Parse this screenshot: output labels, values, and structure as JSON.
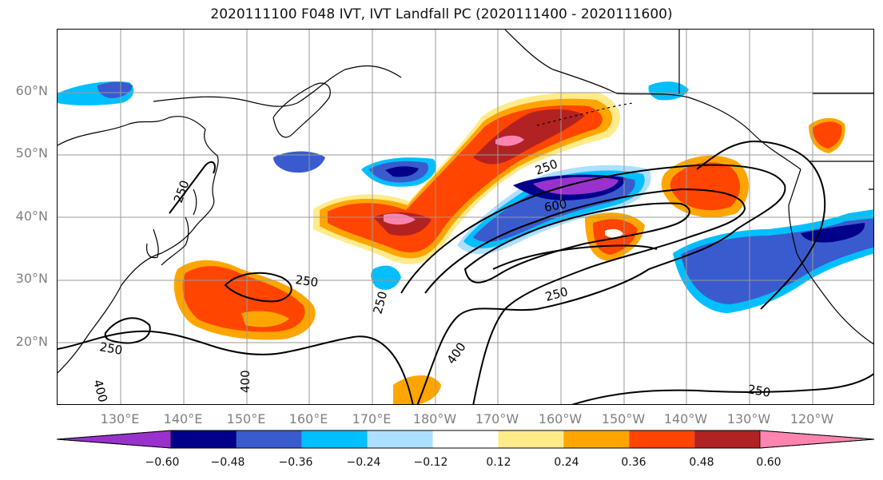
{
  "title": "2020111100 F048 IVT, IVT Landfall PC (2020111400 - 2020111600)",
  "map": {
    "lat_labels": [
      "60°N",
      "50°N",
      "40°N",
      "30°N",
      "20°N"
    ],
    "lon_labels": [
      "130°E",
      "140°E",
      "150°E",
      "160°E",
      "170°E",
      "180°W",
      "170°W",
      "160°W",
      "150°W",
      "140°W",
      "130°W",
      "120°W"
    ],
    "contour_labels": [
      "250",
      "600",
      "250",
      "250",
      "250",
      "250",
      "400",
      "400",
      "400",
      "250",
      "250"
    ]
  },
  "colorbar": {
    "ticks": [
      "−0.60",
      "−0.48",
      "−0.36",
      "−0.24",
      "−0.12",
      "0.12",
      "0.24",
      "0.36",
      "0.48",
      "0.60"
    ],
    "colors": [
      "#9932CC",
      "#00008B",
      "#3A5BCE",
      "#00BFFF",
      "#ADDFFF",
      "#FFFFFF",
      "#FFEB8A",
      "#FFA500",
      "#FF4500",
      "#B22222",
      "#FF85B0"
    ]
  }
}
